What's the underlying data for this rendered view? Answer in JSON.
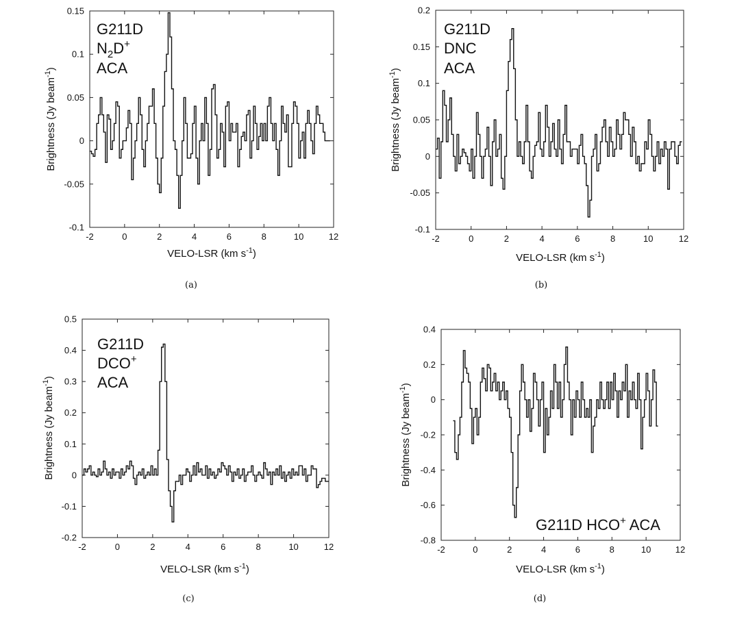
{
  "chart_data": [
    {
      "type": "line",
      "caption": "(a)",
      "title_lines": [
        "G211D",
        "N2D+",
        "ACA"
      ],
      "xlabel": "VELO-LSR (km s-1)",
      "ylabel": "Brightness (Jy beam-1)",
      "xlim": [
        -2,
        12
      ],
      "ylim": [
        -0.1,
        0.15
      ],
      "xticks": [
        -2,
        0,
        2,
        4,
        6,
        8,
        10,
        12
      ],
      "xtick_labels": [
        "-2",
        "0",
        "2",
        "4",
        "6",
        "8",
        "10",
        "12"
      ],
      "yticks": [
        -0.1,
        -0.05,
        0,
        0.05,
        0.1,
        0.15
      ],
      "ytick_labels": [
        "-0.1",
        "-0.05",
        "0",
        "0.05",
        "0.1",
        "0.15"
      ],
      "series": [
        {
          "name": "N2D+",
          "x_start": -2.0,
          "x_step": 0.1,
          "values": [
            -0.012,
            -0.015,
            -0.018,
            -0.01,
            0.02,
            0.03,
            0.05,
            0.03,
            0.01,
            -0.025,
            0.03,
            0.025,
            -0.01,
            0.0,
            0.02,
            0.045,
            0.04,
            -0.02,
            -0.01,
            0.0,
            0.0,
            0.015,
            0.035,
            0.02,
            -0.045,
            -0.02,
            0.0,
            0.02,
            0.05,
            0.03,
            -0.01,
            -0.03,
            0.0,
            0.02,
            0.04,
            0.04,
            0.06,
            0.02,
            -0.02,
            -0.05,
            -0.06,
            -0.02,
            0.04,
            0.08,
            0.1,
            0.148,
            0.12,
            0.06,
            0.0,
            -0.01,
            -0.04,
            -0.078,
            -0.04,
            0.0,
            0.05,
            0.02,
            -0.02,
            -0.02,
            -0.015,
            0.02,
            0.04,
            -0.02,
            -0.05,
            0.0,
            0.02,
            0.0,
            0.05,
            0.02,
            -0.04,
            -0.01,
            0.06,
            0.065,
            0.03,
            -0.02,
            -0.01,
            0.02,
            0.01,
            -0.03,
            0.04,
            0.045,
            0.0,
            0.02,
            0.01,
            0.01,
            0.02,
            -0.03,
            -0.01,
            0.005,
            0.01,
            0.0,
            0.03,
            0.035,
            -0.02,
            0.0,
            0.04,
            0.02,
            -0.01,
            0.005,
            0.02,
            0.0,
            0.02,
            0.0,
            0.04,
            0.05,
            0.02,
            0.0,
            0.02,
            -0.01,
            -0.04,
            0.0,
            0.04,
            0.02,
            0.01,
            0.03,
            -0.03,
            -0.03,
            0.02,
            0.045,
            0.04,
            0.02,
            -0.02,
            0.0,
            0.01,
            -0.02,
            0.02,
            0.035,
            0.02,
            0.0,
            -0.015,
            0.02,
            0.04,
            0.03,
            0.02,
            0.02,
            0.01,
            0.0,
            0.0,
            0.0
          ]
        }
      ]
    },
    {
      "type": "line",
      "caption": "(b)",
      "title_lines": [
        "G211D",
        "DNC",
        "ACA"
      ],
      "xlabel": "VELO-LSR (km s-1)",
      "ylabel": "Brightness (Jy beam-1)",
      "xlim": [
        -2,
        12
      ],
      "ylim": [
        -0.1,
        0.2
      ],
      "xticks": [
        -2,
        0,
        2,
        4,
        6,
        8,
        10,
        12
      ],
      "xtick_labels": [
        "-2",
        "0",
        "2",
        "4",
        "6",
        "8",
        "10",
        "12"
      ],
      "yticks": [
        -0.1,
        -0.05,
        0,
        0.05,
        0.1,
        0.15,
        0.2
      ],
      "ytick_labels": [
        "-0.1",
        "-0.05",
        "0",
        "0.05",
        "0.1",
        "0.15",
        "0.2"
      ],
      "series": [
        {
          "name": "DNC",
          "x_start": -2.0,
          "x_step": 0.1,
          "values": [
            0.01,
            0.025,
            -0.03,
            0.02,
            0.09,
            0.07,
            0.02,
            0.05,
            0.08,
            0.03,
            0.0,
            -0.02,
            0.03,
            -0.01,
            0.0,
            0.01,
            0.005,
            0.0,
            -0.01,
            -0.02,
            0.01,
            -0.03,
            0.0,
            0.06,
            0.03,
            0.0,
            -0.03,
            0.0,
            0.01,
            0.04,
            0.0,
            -0.04,
            0.02,
            0.05,
            0.0,
            0.01,
            0.03,
            -0.03,
            -0.045,
            0.0,
            0.09,
            0.13,
            0.16,
            0.175,
            0.12,
            0.05,
            0.0,
            0.02,
            0.0,
            -0.01,
            0.02,
            0.07,
            0.02,
            -0.02,
            -0.03,
            0.0,
            0.015,
            0.02,
            0.06,
            0.01,
            0.0,
            0.02,
            0.07,
            0.04,
            0.0,
            0.02,
            0.045,
            0.01,
            0.0,
            0.05,
            0.01,
            -0.01,
            0.03,
            0.07,
            0.02,
            0.02,
            0.0,
            0.01,
            0.01,
            0.01,
            -0.01,
            0.015,
            0.03,
            0.0,
            -0.01,
            -0.04,
            -0.083,
            -0.06,
            0.0,
            0.01,
            0.03,
            -0.02,
            -0.01,
            0.02,
            0.04,
            0.05,
            0.02,
            0.0,
            0.04,
            0.02,
            0.0,
            0.01,
            0.05,
            0.03,
            0.01,
            0.03,
            0.06,
            0.05,
            0.05,
            0.03,
            0.0,
            0.04,
            0.02,
            -0.01,
            0.0,
            -0.02,
            -0.01,
            -0.01,
            0.02,
            0.01,
            0.05,
            0.03,
            0.0,
            -0.02,
            0.0,
            0.02,
            -0.01,
            0.01,
            0.0,
            0.02,
            0.01,
            -0.045,
            0.01,
            0.02,
            0.02,
            0.0,
            -0.01,
            0.015,
            0.02
          ]
        }
      ]
    },
    {
      "type": "line",
      "caption": "(c)",
      "title_lines": [
        "G211D",
        "DCO+",
        "ACA"
      ],
      "xlabel": "VELO-LSR (km s-1)",
      "ylabel": "Brightness (Jy beam-1)",
      "xlim": [
        -2,
        12
      ],
      "ylim": [
        -0.2,
        0.5
      ],
      "xticks": [
        -2,
        0,
        2,
        4,
        6,
        8,
        10,
        12
      ],
      "xtick_labels": [
        "-2",
        "0",
        "2",
        "4",
        "6",
        "8",
        "10",
        "12"
      ],
      "yticks": [
        -0.2,
        -0.1,
        0,
        0.1,
        0.2,
        0.3,
        0.4,
        0.5
      ],
      "ytick_labels": [
        "-0.2",
        "-0.1",
        "0",
        "0.1",
        "0.2",
        "0.3",
        "0.4",
        "0.5"
      ],
      "series": [
        {
          "name": "DCO+",
          "x_start": -2.0,
          "x_step": 0.1,
          "values": [
            0.0,
            0.02,
            0.01,
            0.02,
            0.03,
            0.0,
            0.01,
            0.0,
            -0.005,
            0.02,
            0.0,
            0.01,
            0.045,
            0.02,
            0.0,
            0.01,
            -0.01,
            0.02,
            0.0,
            0.01,
            0.01,
            -0.01,
            0.02,
            0.0,
            0.01,
            0.03,
            0.02,
            0.045,
            0.03,
            -0.01,
            -0.03,
            0.0,
            0.01,
            0.0,
            0.02,
            -0.01,
            0.0,
            0.01,
            0.0,
            0.03,
            0.0,
            0.02,
            0.0,
            0.08,
            0.3,
            0.41,
            0.42,
            0.3,
            0.05,
            -0.05,
            -0.1,
            -0.15,
            -0.05,
            -0.02,
            -0.02,
            0.0,
            -0.03,
            0.0,
            0.0,
            0.02,
            0.01,
            -0.02,
            0.0,
            0.03,
            0.0,
            0.04,
            0.01,
            0.02,
            0.0,
            0.0,
            0.03,
            -0.01,
            0.02,
            0.0,
            0.01,
            -0.01,
            0.0,
            0.02,
            0.01,
            0.04,
            0.03,
            0.02,
            0.0,
            0.03,
            0.01,
            -0.02,
            0.01,
            0.0,
            0.02,
            -0.01,
            0.0,
            0.02,
            -0.02,
            0.0,
            0.01,
            0.01,
            0.03,
            0.0,
            -0.02,
            0.0,
            0.01,
            0.0,
            -0.01,
            0.04,
            0.02,
            0.0,
            0.01,
            -0.03,
            0.01,
            0.0,
            0.02,
            0.0,
            0.03,
            -0.01,
            0.01,
            -0.02,
            0.0,
            0.01,
            -0.01,
            0.02,
            0.0,
            0.01,
            0.0,
            0.03,
            0.03,
            0.0,
            0.02,
            -0.02,
            0.0,
            0.0,
            0.03,
            0.02,
            0.02,
            -0.04,
            -0.03,
            -0.02,
            -0.01,
            -0.01,
            -0.02,
            -0.02
          ]
        }
      ]
    },
    {
      "type": "line",
      "caption": "(d)",
      "title_lines": [
        "G211D HCO+ ACA"
      ],
      "xlabel": "VELO-LSR (km s-1)",
      "ylabel": "Brightness (Jy beam-1)",
      "xlim": [
        -2,
        12
      ],
      "ylim": [
        -0.8,
        0.4
      ],
      "xticks": [
        -2,
        0,
        2,
        4,
        6,
        8,
        10,
        12
      ],
      "xtick_labels": [
        "-2",
        "0",
        "2",
        "4",
        "6",
        "8",
        "10",
        "12"
      ],
      "yticks": [
        -0.8,
        -0.6,
        -0.4,
        -0.2,
        0,
        0.2,
        0.4
      ],
      "ytick_labels": [
        "-0.8",
        "-0.6",
        "-0.4",
        "-0.2",
        "0",
        "0.2",
        "0.4"
      ],
      "series": [
        {
          "name": "HCO+",
          "x_start": -1.3,
          "x_step": 0.1,
          "values": [
            -0.12,
            -0.3,
            -0.34,
            -0.2,
            -0.1,
            0.1,
            0.28,
            0.18,
            0.15,
            0.1,
            -0.05,
            -0.25,
            -0.1,
            -0.05,
            -0.2,
            -0.1,
            0.1,
            0.18,
            0.12,
            0.05,
            0.2,
            0.18,
            0.05,
            0.1,
            0.15,
            0.05,
            0.1,
            0.0,
            0.05,
            0.1,
            0.0,
            0.05,
            -0.05,
            -0.1,
            -0.3,
            -0.6,
            -0.67,
            -0.5,
            -0.2,
            0.05,
            0.2,
            0.1,
            0.0,
            -0.1,
            0.0,
            -0.18,
            -0.05,
            0.15,
            0.1,
            0.0,
            -0.15,
            0.0,
            0.1,
            -0.3,
            -0.05,
            -0.2,
            -0.1,
            0.05,
            -0.05,
            0.2,
            0.1,
            -0.05,
            0.1,
            -0.1,
            0.0,
            0.2,
            0.3,
            0.1,
            0.0,
            -0.2,
            0.0,
            -0.1,
            0.05,
            0.0,
            -0.1,
            0.1,
            0.0,
            -0.1,
            -0.05,
            -0.1,
            0.0,
            -0.3,
            -0.15,
            -0.1,
            0.0,
            -0.05,
            0.1,
            0.0,
            -0.05,
            0.0,
            0.1,
            -0.05,
            0.1,
            0.0,
            0.15,
            0.05,
            -0.1,
            0.05,
            0.0,
            0.1,
            0.05,
            0.2,
            -0.1,
            0.05,
            0.0,
            0.1,
            0.0,
            -0.05,
            0.15,
            0.0,
            -0.28,
            -0.1,
            0.0,
            0.15,
            0.05,
            -0.15,
            0.0,
            0.17,
            0.1,
            -0.15
          ]
        }
      ]
    }
  ]
}
